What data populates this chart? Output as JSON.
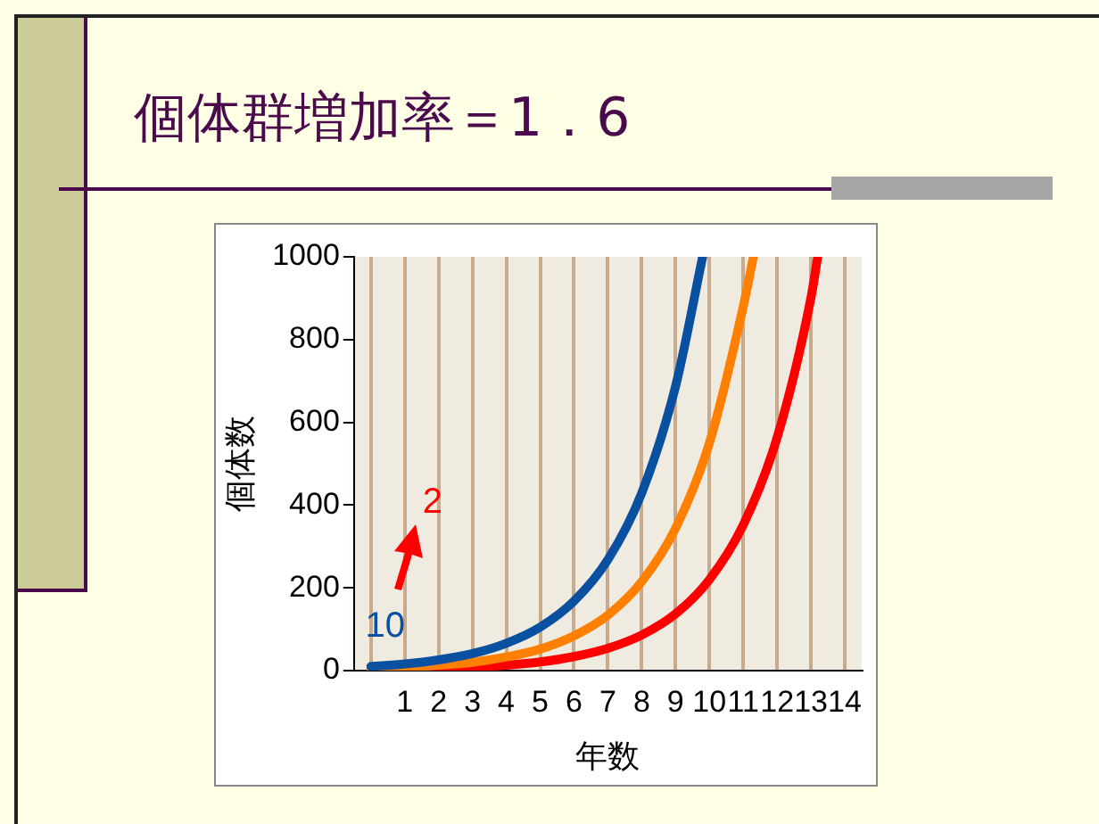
{
  "chart_data": {
    "type": "line",
    "title": "個体群増加率＝1．6",
    "xlabel": "年数",
    "ylabel": "個体数",
    "xlim": [
      -0.5,
      14.5
    ],
    "xticks": [
      {
        "value": 0,
        "label": null
      },
      1,
      2,
      3,
      4,
      5,
      6,
      7,
      8,
      9,
      10,
      11,
      12,
      13,
      14
    ],
    "ylim": [
      0,
      1000
    ],
    "yticks": [
      0,
      200,
      400,
      600,
      800,
      1000
    ],
    "grid": "x",
    "legend": false,
    "series": [
      {
        "color": "#0a50a0",
        "x": [
          0,
          1,
          2,
          3,
          4,
          5,
          6,
          7,
          8,
          9,
          9.8
        ],
        "values": [
          10,
          16,
          26,
          41,
          66,
          105,
          168,
          268,
          429,
          687,
          1000
        ]
      },
      {
        "color": "#ff8000",
        "x": [
          0,
          1,
          2,
          3,
          4,
          5,
          6,
          7,
          8,
          9,
          10,
          11,
          11.3
        ],
        "values": [
          5,
          8,
          13,
          20,
          33,
          52,
          84,
          134,
          215,
          344,
          550,
          880,
          1000
        ]
      },
      {
        "color": "#ff0000",
        "x": [
          0,
          1,
          2,
          3,
          4,
          5,
          6,
          7,
          8,
          9,
          10,
          11,
          12,
          13,
          13.2
        ],
        "values": [
          2,
          3,
          5,
          8,
          13,
          21,
          34,
          54,
          86,
          137,
          220,
          352,
          563,
          901,
          1000
        ]
      }
    ],
    "annotations": [
      {
        "text": "10",
        "x": 0,
        "y": 10
      },
      "2"
    ]
  }
}
